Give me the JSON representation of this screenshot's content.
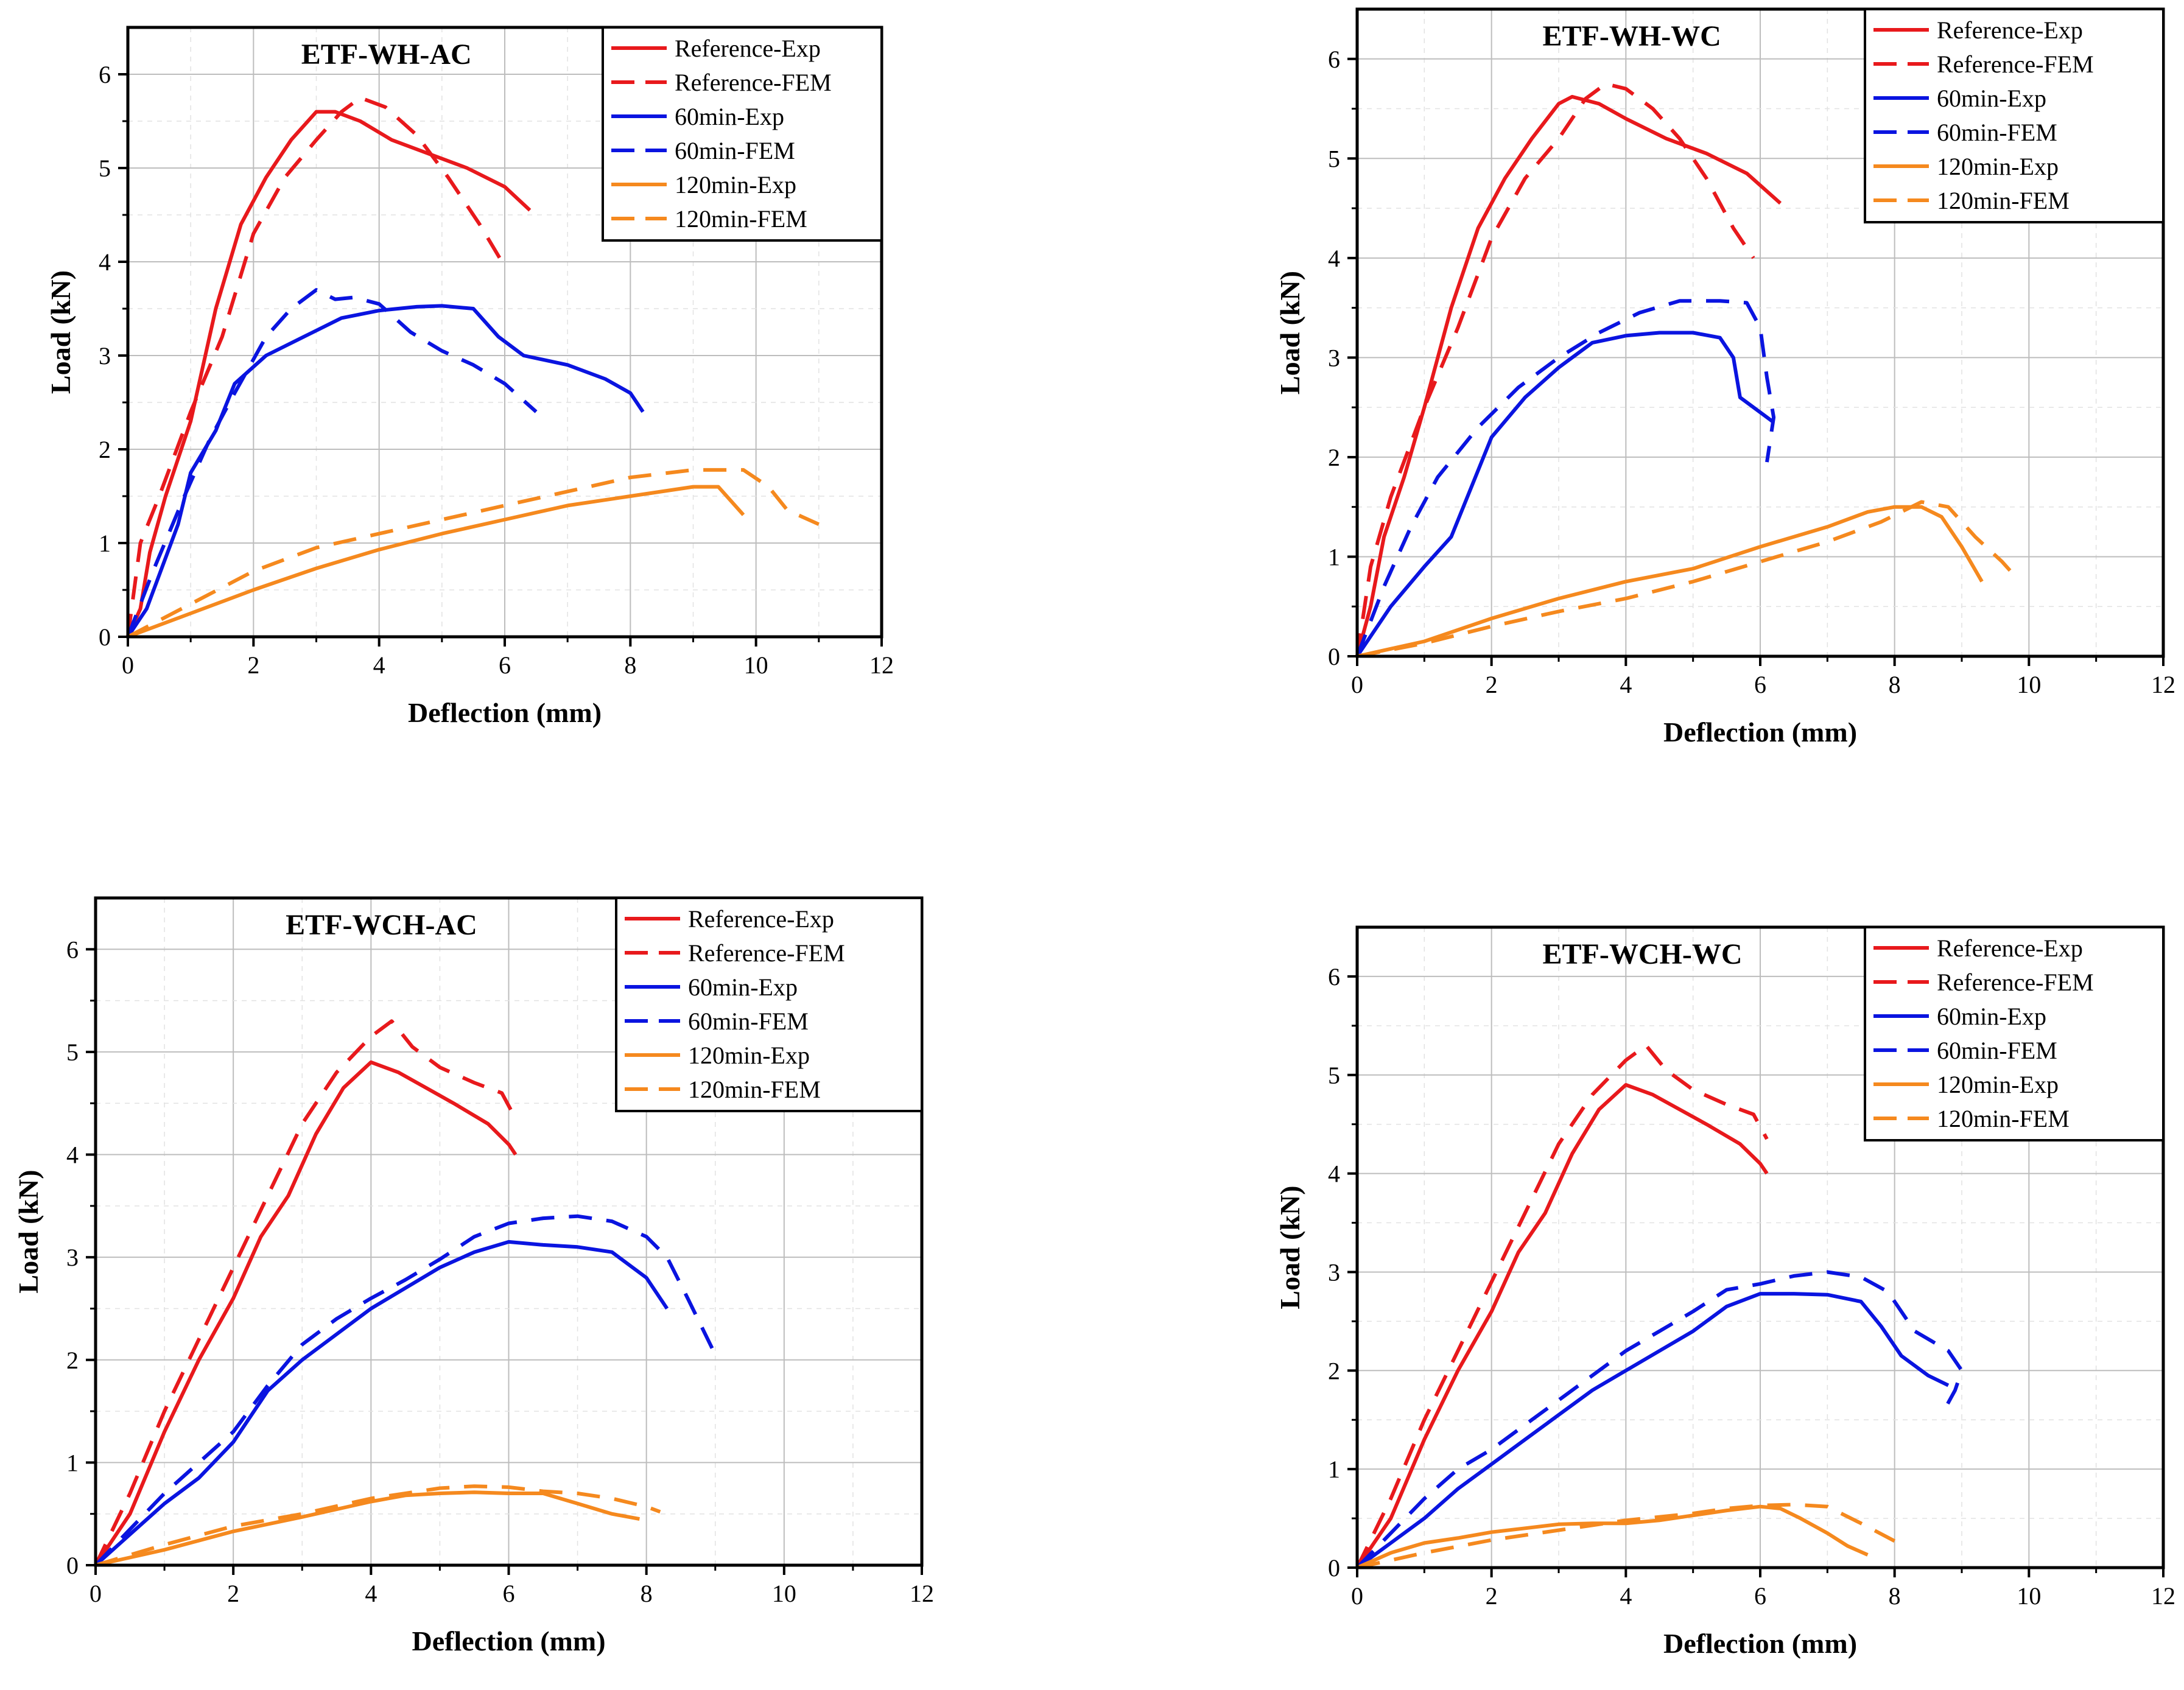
{
  "figure": {
    "colors": {
      "reference": "#e8191c",
      "min60": "#0a14e0",
      "min120": "#f5891e"
    }
  },
  "chart_data": [
    {
      "type": "line",
      "title": "ETF-WH-AC",
      "xlabel": "Deflection (mm)",
      "ylabel": "Load (kN)",
      "xlim": [
        0,
        12
      ],
      "ylim": [
        0,
        6.5
      ],
      "xticks": [
        "0",
        "2",
        "4",
        "6",
        "8",
        "10",
        "12"
      ],
      "yticks": [
        "0",
        "1",
        "2",
        "3",
        "4",
        "5",
        "6"
      ],
      "grid": true,
      "legend_position": "top-right",
      "series": [
        {
          "name": "Reference-Exp",
          "color": "#e8191c",
          "dash": false,
          "x": [
            0,
            0.2,
            0.35,
            0.6,
            1.0,
            1.4,
            1.8,
            2.2,
            2.6,
            3.0,
            3.3,
            3.7,
            4.2,
            4.8,
            5.4,
            6.0,
            6.4
          ],
          "y": [
            0,
            0.3,
            0.9,
            1.5,
            2.3,
            3.5,
            4.4,
            4.9,
            5.3,
            5.6,
            5.6,
            5.5,
            5.3,
            5.15,
            5.0,
            4.8,
            4.55
          ]
        },
        {
          "name": "Reference-FEM",
          "color": "#e8191c",
          "dash": true,
          "x": [
            0,
            0.2,
            0.5,
            1.0,
            1.5,
            2.0,
            2.5,
            3.0,
            3.4,
            3.7,
            4.1,
            4.6,
            5.1,
            5.6,
            6.0
          ],
          "y": [
            0,
            1.0,
            1.5,
            2.4,
            3.2,
            4.3,
            4.9,
            5.3,
            5.6,
            5.75,
            5.65,
            5.35,
            4.9,
            4.4,
            3.95
          ]
        },
        {
          "name": "60min-Exp",
          "color": "#0a14e0",
          "dash": false,
          "x": [
            0,
            0.3,
            0.8,
            1.0,
            1.4,
            1.7,
            2.2,
            2.8,
            3.4,
            4.0,
            4.6,
            5.0,
            5.5,
            5.9,
            6.3,
            7.0,
            7.6,
            8.0,
            8.2
          ],
          "y": [
            0,
            0.3,
            1.2,
            1.75,
            2.2,
            2.7,
            3.0,
            3.2,
            3.4,
            3.48,
            3.52,
            3.53,
            3.5,
            3.2,
            3.0,
            2.9,
            2.75,
            2.6,
            2.4
          ]
        },
        {
          "name": "60min-FEM",
          "color": "#0a14e0",
          "dash": true,
          "x": [
            0,
            0.4,
            0.9,
            1.3,
            1.7,
            2.2,
            2.6,
            3.0,
            3.3,
            3.6,
            4.0,
            4.5,
            5.0,
            5.5,
            6.0,
            6.5
          ],
          "y": [
            0,
            0.7,
            1.5,
            2.1,
            2.6,
            3.2,
            3.5,
            3.7,
            3.6,
            3.62,
            3.55,
            3.25,
            3.05,
            2.9,
            2.7,
            2.4
          ]
        },
        {
          "name": "120min-Exp",
          "color": "#f5891e",
          "dash": false,
          "x": [
            0,
            1.0,
            2.0,
            3.0,
            4.0,
            5.0,
            6.0,
            7.0,
            8.0,
            9.0,
            9.4,
            9.8
          ],
          "y": [
            0,
            0.25,
            0.5,
            0.73,
            0.93,
            1.1,
            1.25,
            1.4,
            1.5,
            1.6,
            1.6,
            1.3
          ]
        },
        {
          "name": "120min-FEM",
          "color": "#f5891e",
          "dash": true,
          "x": [
            0,
            1.0,
            2.0,
            3.0,
            4.0,
            5.0,
            6.0,
            7.0,
            8.0,
            9.0,
            9.8,
            10.2,
            10.5,
            11.0
          ],
          "y": [
            0,
            0.35,
            0.7,
            0.95,
            1.1,
            1.25,
            1.4,
            1.55,
            1.7,
            1.78,
            1.78,
            1.6,
            1.35,
            1.2
          ]
        }
      ]
    },
    {
      "type": "line",
      "title": "ETF-WH-WC",
      "xlabel": "Deflection (mm)",
      "ylabel": "Load (kN)",
      "xlim": [
        0,
        12
      ],
      "ylim": [
        0,
        6.5
      ],
      "xticks": [
        "0",
        "2",
        "4",
        "6",
        "8",
        "10",
        "12"
      ],
      "yticks": [
        "0",
        "1",
        "2",
        "3",
        "4",
        "5",
        "6"
      ],
      "grid": true,
      "legend_position": "top-right",
      "series": [
        {
          "name": "Reference-Exp",
          "color": "#e8191c",
          "dash": false,
          "x": [
            0,
            0.2,
            0.4,
            0.7,
            1.0,
            1.4,
            1.8,
            2.2,
            2.6,
            3.0,
            3.2,
            3.6,
            4.0,
            4.6,
            5.2,
            5.8,
            6.3
          ],
          "y": [
            0,
            0.5,
            1.2,
            1.8,
            2.5,
            3.5,
            4.3,
            4.8,
            5.2,
            5.55,
            5.62,
            5.55,
            5.4,
            5.2,
            5.05,
            4.85,
            4.55
          ]
        },
        {
          "name": "Reference-FEM",
          "color": "#e8191c",
          "dash": true,
          "x": [
            0,
            0.2,
            0.5,
            1.0,
            1.5,
            2.0,
            2.5,
            3.0,
            3.4,
            3.7,
            4.0,
            4.4,
            4.8,
            5.2,
            5.6,
            5.9
          ],
          "y": [
            0,
            0.9,
            1.6,
            2.5,
            3.3,
            4.2,
            4.8,
            5.2,
            5.6,
            5.75,
            5.7,
            5.5,
            5.2,
            4.8,
            4.3,
            4.0
          ]
        },
        {
          "name": "60min-Exp",
          "color": "#0a14e0",
          "dash": false,
          "x": [
            0,
            0.5,
            1.0,
            1.4,
            1.7,
            2.0,
            2.5,
            3.0,
            3.5,
            4.0,
            4.5,
            5.0,
            5.4,
            5.6,
            5.7,
            6.0,
            6.2
          ],
          "y": [
            0,
            0.5,
            0.9,
            1.2,
            1.7,
            2.2,
            2.6,
            2.9,
            3.15,
            3.22,
            3.25,
            3.25,
            3.2,
            3.0,
            2.6,
            2.45,
            2.35
          ]
        },
        {
          "name": "60min-FEM",
          "color": "#0a14e0",
          "dash": true,
          "x": [
            0,
            0.4,
            0.8,
            1.2,
            1.8,
            2.4,
            3.0,
            3.6,
            4.2,
            4.8,
            5.4,
            5.8,
            6.0,
            6.1,
            6.2,
            6.1
          ],
          "y": [
            0,
            0.7,
            1.3,
            1.8,
            2.3,
            2.7,
            3.0,
            3.25,
            3.45,
            3.57,
            3.57,
            3.55,
            3.3,
            2.8,
            2.4,
            1.95
          ]
        },
        {
          "name": "120min-Exp",
          "color": "#f5891e",
          "dash": false,
          "x": [
            0,
            1.0,
            2.0,
            3.0,
            4.0,
            5.0,
            6.0,
            7.0,
            7.6,
            8.0,
            8.4,
            8.7,
            9.0,
            9.3
          ],
          "y": [
            0,
            0.15,
            0.38,
            0.58,
            0.75,
            0.88,
            1.1,
            1.3,
            1.45,
            1.5,
            1.5,
            1.4,
            1.1,
            0.75
          ]
        },
        {
          "name": "120min-FEM",
          "color": "#f5891e",
          "dash": true,
          "x": [
            0,
            1.0,
            2.0,
            3.0,
            4.0,
            5.0,
            6.0,
            7.0,
            7.8,
            8.4,
            8.8,
            9.2,
            9.6,
            9.8
          ],
          "y": [
            0,
            0.13,
            0.3,
            0.45,
            0.58,
            0.75,
            0.95,
            1.15,
            1.35,
            1.55,
            1.5,
            1.2,
            0.95,
            0.8
          ]
        }
      ]
    },
    {
      "type": "line",
      "title": "ETF-WCH-AC",
      "xlabel": "Deflection (mm)",
      "ylabel": "Load (kN)",
      "xlim": [
        0,
        12
      ],
      "ylim": [
        0,
        6.5
      ],
      "xticks": [
        "0",
        "2",
        "4",
        "6",
        "8",
        "10",
        "12"
      ],
      "yticks": [
        "0",
        "1",
        "2",
        "3",
        "4",
        "5",
        "6"
      ],
      "grid": true,
      "legend_position": "top-right",
      "series": [
        {
          "name": "Reference-Exp",
          "color": "#e8191c",
          "dash": false,
          "x": [
            0,
            0.5,
            1.0,
            1.5,
            2.0,
            2.4,
            2.8,
            3.2,
            3.6,
            4.0,
            4.4,
            4.8,
            5.2,
            5.7,
            6.0,
            6.1
          ],
          "y": [
            0,
            0.5,
            1.3,
            2.0,
            2.6,
            3.2,
            3.6,
            4.2,
            4.65,
            4.9,
            4.8,
            4.65,
            4.5,
            4.3,
            4.1,
            4.0
          ]
        },
        {
          "name": "Reference-FEM",
          "color": "#e8191c",
          "dash": true,
          "x": [
            0,
            0.5,
            1.0,
            1.5,
            2.0,
            2.5,
            3.0,
            3.5,
            4.0,
            4.3,
            4.6,
            5.0,
            5.5,
            5.9,
            6.1
          ],
          "y": [
            0,
            0.7,
            1.5,
            2.2,
            2.9,
            3.6,
            4.3,
            4.8,
            5.15,
            5.3,
            5.05,
            4.85,
            4.7,
            4.6,
            4.35
          ]
        },
        {
          "name": "60min-Exp",
          "color": "#0a14e0",
          "dash": false,
          "x": [
            0,
            0.5,
            1.0,
            1.5,
            2.0,
            2.5,
            3.0,
            3.5,
            4.0,
            4.5,
            5.0,
            5.5,
            6.0,
            6.5,
            7.0,
            7.5,
            8.0,
            8.3
          ],
          "y": [
            0,
            0.3,
            0.6,
            0.85,
            1.2,
            1.7,
            2.0,
            2.25,
            2.5,
            2.7,
            2.9,
            3.05,
            3.15,
            3.12,
            3.1,
            3.05,
            2.8,
            2.5
          ]
        },
        {
          "name": "60min-FEM",
          "color": "#0a14e0",
          "dash": true,
          "x": [
            0,
            0.5,
            1.0,
            1.5,
            2.0,
            2.5,
            3.0,
            3.5,
            4.0,
            4.5,
            5.0,
            5.5,
            6.0,
            6.5,
            7.0,
            7.5,
            8.0,
            8.3,
            8.6,
            9.0
          ],
          "y": [
            0,
            0.35,
            0.7,
            1.0,
            1.3,
            1.75,
            2.15,
            2.4,
            2.6,
            2.78,
            2.98,
            3.2,
            3.33,
            3.38,
            3.4,
            3.35,
            3.2,
            3.0,
            2.6,
            2.05
          ]
        },
        {
          "name": "120min-Exp",
          "color": "#f5891e",
          "dash": false,
          "x": [
            0,
            1.0,
            2.0,
            3.0,
            4.0,
            4.5,
            5.0,
            5.5,
            6.0,
            6.5,
            7.0,
            7.5,
            7.9
          ],
          "y": [
            0,
            0.15,
            0.33,
            0.47,
            0.62,
            0.68,
            0.7,
            0.71,
            0.7,
            0.7,
            0.6,
            0.5,
            0.45
          ]
        },
        {
          "name": "120min-FEM",
          "color": "#f5891e",
          "dash": true,
          "x": [
            0,
            1.0,
            2.0,
            3.0,
            4.0,
            4.5,
            5.0,
            5.5,
            6.0,
            6.5,
            7.0,
            7.5,
            8.0,
            8.2
          ],
          "y": [
            0,
            0.2,
            0.38,
            0.5,
            0.65,
            0.7,
            0.75,
            0.77,
            0.76,
            0.72,
            0.7,
            0.65,
            0.57,
            0.52
          ]
        }
      ]
    },
    {
      "type": "line",
      "title": "ETF-WCH-WC",
      "xlabel": "Deflection (mm)",
      "ylabel": "Load (kN)",
      "xlim": [
        0,
        12
      ],
      "ylim": [
        0,
        6.5
      ],
      "xticks": [
        "0",
        "2",
        "4",
        "6",
        "8",
        "10",
        "12"
      ],
      "yticks": [
        "0",
        "1",
        "2",
        "3",
        "4",
        "5",
        "6"
      ],
      "grid": true,
      "legend_position": "top-right",
      "series": [
        {
          "name": "Reference-Exp",
          "color": "#e8191c",
          "dash": false,
          "x": [
            0,
            0.5,
            1.0,
            1.5,
            2.0,
            2.4,
            2.8,
            3.2,
            3.6,
            4.0,
            4.4,
            4.8,
            5.2,
            5.7,
            6.0,
            6.1
          ],
          "y": [
            0,
            0.5,
            1.3,
            2.0,
            2.6,
            3.2,
            3.6,
            4.2,
            4.65,
            4.9,
            4.8,
            4.65,
            4.5,
            4.3,
            4.1,
            4.0
          ]
        },
        {
          "name": "Reference-FEM",
          "color": "#e8191c",
          "dash": true,
          "x": [
            0,
            0.5,
            1.0,
            1.5,
            2.0,
            2.5,
            3.0,
            3.5,
            4.0,
            4.3,
            4.6,
            5.0,
            5.5,
            5.9,
            6.1
          ],
          "y": [
            0,
            0.7,
            1.5,
            2.2,
            2.9,
            3.6,
            4.3,
            4.8,
            5.15,
            5.3,
            5.05,
            4.85,
            4.7,
            4.6,
            4.35
          ]
        },
        {
          "name": "60min-Exp",
          "color": "#0a14e0",
          "dash": false,
          "x": [
            0,
            0.5,
            1.0,
            1.5,
            2.0,
            2.5,
            3.0,
            3.5,
            4.0,
            4.5,
            5.0,
            5.5,
            6.0,
            6.5,
            7.0,
            7.5,
            7.8,
            8.1,
            8.5,
            8.8
          ],
          "y": [
            0,
            0.25,
            0.5,
            0.8,
            1.05,
            1.3,
            1.55,
            1.8,
            2.0,
            2.2,
            2.4,
            2.65,
            2.78,
            2.78,
            2.77,
            2.7,
            2.45,
            2.15,
            1.95,
            1.85
          ]
        },
        {
          "name": "60min-FEM",
          "color": "#0a14e0",
          "dash": true,
          "x": [
            0,
            0.5,
            1.0,
            1.5,
            2.0,
            2.5,
            3.0,
            3.5,
            4.0,
            4.5,
            5.0,
            5.5,
            6.0,
            6.5,
            7.0,
            7.5,
            7.9,
            8.3,
            8.8,
            9.0,
            8.9,
            8.7
          ],
          "y": [
            0,
            0.35,
            0.7,
            1.0,
            1.2,
            1.45,
            1.7,
            1.95,
            2.2,
            2.4,
            2.6,
            2.82,
            2.88,
            2.96,
            3.0,
            2.95,
            2.8,
            2.4,
            2.2,
            2.0,
            1.8,
            1.55
          ]
        },
        {
          "name": "120min-Exp",
          "color": "#f5891e",
          "dash": false,
          "x": [
            0,
            0.5,
            1.0,
            1.5,
            2.0,
            2.5,
            3.0,
            3.5,
            4.0,
            4.5,
            5.0,
            5.5,
            6.0,
            6.3,
            6.6,
            7.0,
            7.3,
            7.6
          ],
          "y": [
            0,
            0.15,
            0.25,
            0.3,
            0.36,
            0.4,
            0.44,
            0.45,
            0.45,
            0.48,
            0.53,
            0.58,
            0.62,
            0.6,
            0.5,
            0.35,
            0.22,
            0.13
          ]
        },
        {
          "name": "120min-FEM",
          "color": "#f5891e",
          "dash": true,
          "x": [
            0,
            1.0,
            2.0,
            3.0,
            4.0,
            5.0,
            5.5,
            6.0,
            6.5,
            7.0,
            7.5,
            8.0
          ],
          "y": [
            0,
            0.15,
            0.28,
            0.38,
            0.48,
            0.55,
            0.6,
            0.63,
            0.64,
            0.62,
            0.45,
            0.27
          ]
        }
      ]
    }
  ]
}
